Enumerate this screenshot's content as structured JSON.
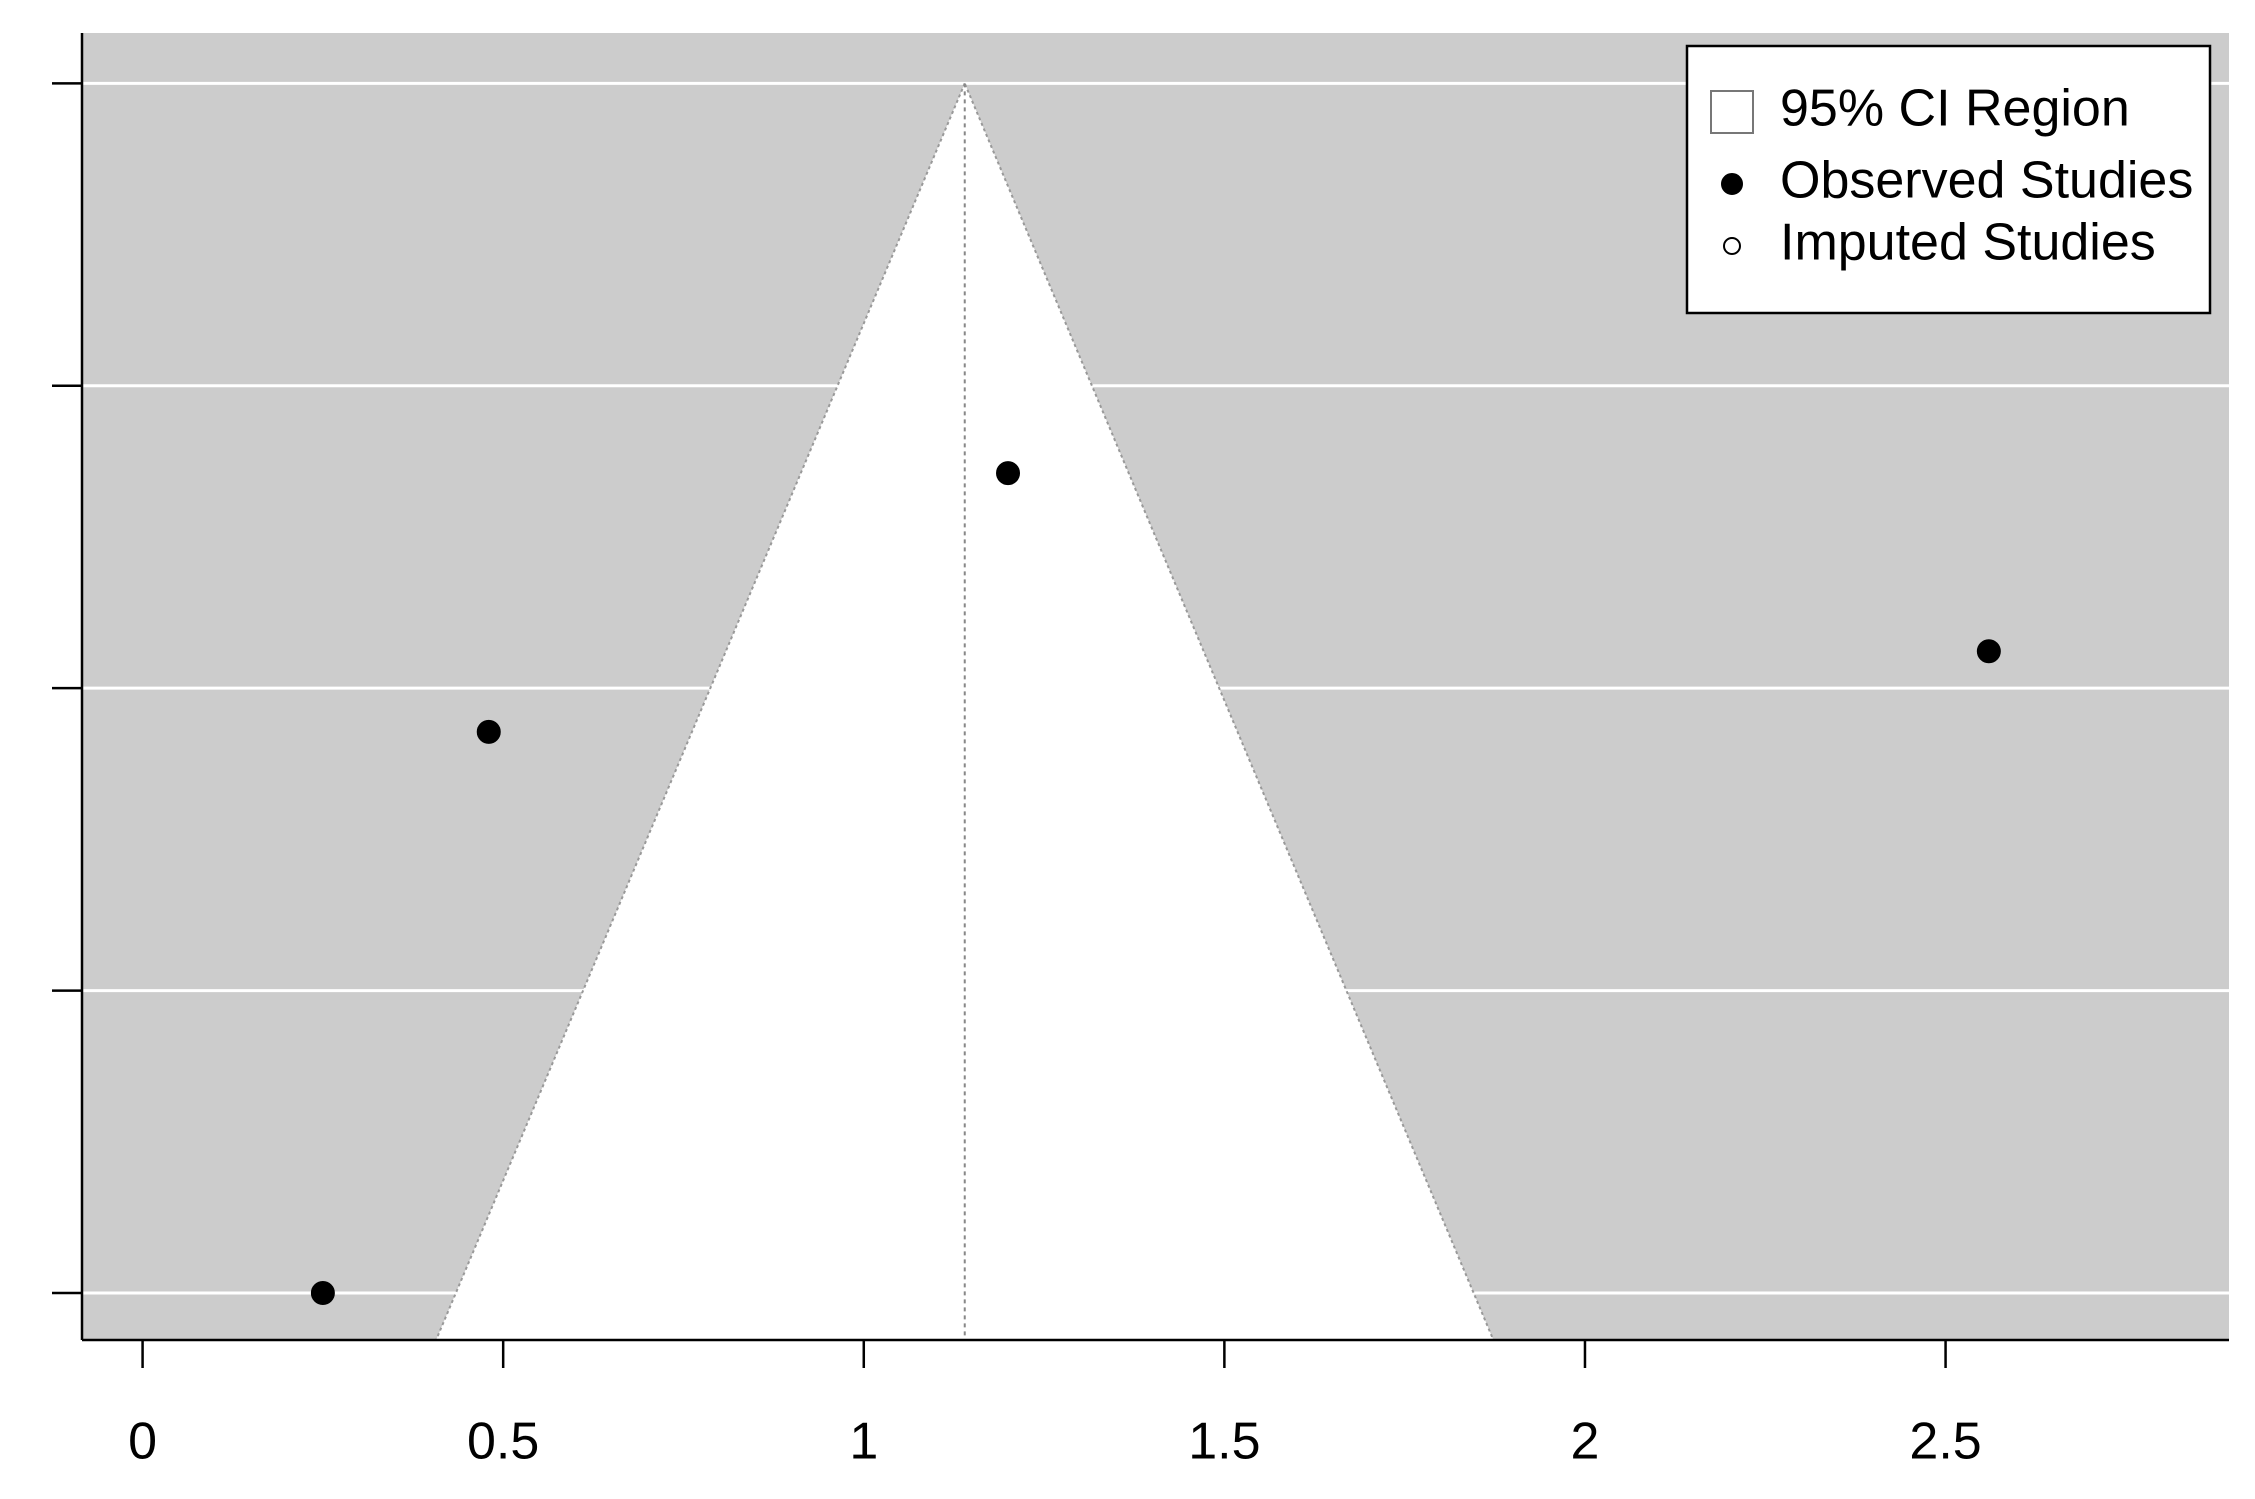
{
  "chart_data": {
    "type": "funnel",
    "summary_estimate": 1.14,
    "z": 1.96,
    "series": [
      {
        "name": "Observed Studies",
        "color": "#000000",
        "filled": true,
        "x": [
          0.25,
          0.48,
          1.2,
          2.56
        ],
        "values": [
          0.36,
          0.193,
          0.116,
          0.169
        ]
      },
      {
        "name": "Imputed Studies",
        "color": "#000000",
        "filled": false,
        "x": [],
        "values": []
      }
    ],
    "region_label": "95% CI Region",
    "xlim": [
      -0.084,
      2.893
    ],
    "ylim": [
      -0.015,
      0.374
    ],
    "y_reversed": true,
    "xticks": [
      0,
      0.5,
      1,
      1.5,
      2,
      2.5
    ],
    "yticks": [
      {
        "value": 0,
        "label": null
      },
      {
        "value": 0.09,
        "label": null
      },
      {
        "value": 0.18,
        "label": null
      },
      {
        "value": 0.27,
        "label": null
      },
      {
        "value": 0.36,
        "label": null
      }
    ],
    "grid": true,
    "background": "#cccccc",
    "legend_position": "top-right"
  }
}
